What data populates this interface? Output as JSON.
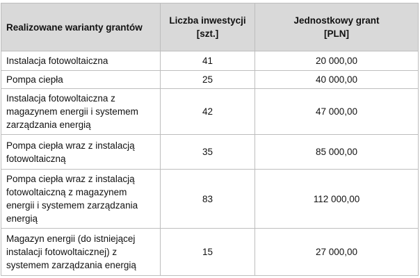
{
  "headers": [
    "Realizowane warianty grantów",
    "Liczba inwestycji\n[szt.]",
    "Jednostkowy grant\n[PLN]"
  ],
  "header_lines": [
    [
      "Realizowane warianty grantów"
    ],
    [
      "Liczba inwestycji",
      "[szt.]"
    ],
    [
      "Jednostkowy grant",
      "[PLN]"
    ]
  ],
  "rows": [
    {
      "variant": "Instalacja fotowoltaiczna",
      "count": "41",
      "grant": "20 000,00"
    },
    {
      "variant": "Pompa ciepła",
      "count": "25",
      "grant": "40 000,00"
    },
    {
      "variant": "Instalacja fotowoltaiczna z magazynem energii i systemem zarządzania energią",
      "count": "42",
      "grant": "47 000,00"
    },
    {
      "variant": "Pompa ciepła wraz z instalacją fotowoltaiczną",
      "count": "35",
      "grant": "85 000,00"
    },
    {
      "variant": "Pompa ciepła wraz z instalacją fotowoltaiczną z magazynem energii i systemem zarządzania energią",
      "count": "83",
      "grant": "112 000,00"
    },
    {
      "variant": "Magazyn energii (do istniejącej instalacji fotowoltaicznej) z systemem zarządzania energią",
      "count": "15",
      "grant": "27 000,00"
    }
  ],
  "colors": {
    "header_bg": "#d9d9d9",
    "border": "#bdbdbd"
  }
}
